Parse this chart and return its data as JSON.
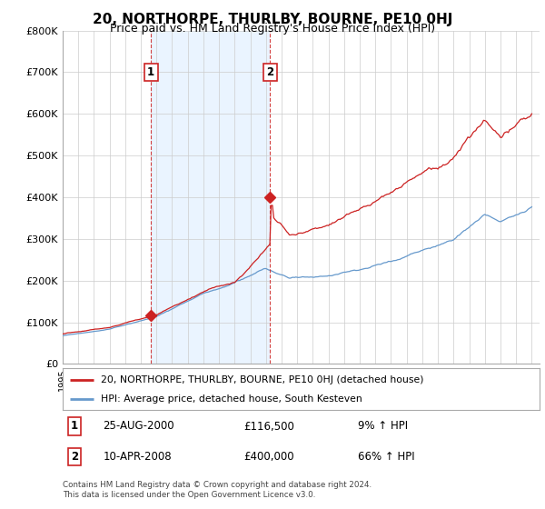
{
  "title": "20, NORTHORPE, THURLBY, BOURNE, PE10 0HJ",
  "subtitle": "Price paid vs. HM Land Registry's House Price Index (HPI)",
  "ylabel_ticks": [
    "£0",
    "£100K",
    "£200K",
    "£300K",
    "£400K",
    "£500K",
    "£600K",
    "£700K",
    "£800K"
  ],
  "ylim": [
    0,
    800000
  ],
  "xlim_start": 1995.0,
  "xlim_end": 2025.5,
  "red_line_color": "#cc2222",
  "blue_line_color": "#6699cc",
  "shade_color": "#ddeeff",
  "sale1_x": 2000.646,
  "sale1_y": 116500,
  "sale2_x": 2008.274,
  "sale2_y": 400000,
  "vline1_x": 2000.646,
  "vline2_x": 2008.274,
  "legend_red_label": "20, NORTHORPE, THURLBY, BOURNE, PE10 0HJ (detached house)",
  "legend_blue_label": "HPI: Average price, detached house, South Kesteven",
  "sale1_label": "1",
  "sale1_date": "25-AUG-2000",
  "sale1_price": "£116,500",
  "sale1_hpi": "9% ↑ HPI",
  "sale2_label": "2",
  "sale2_date": "10-APR-2008",
  "sale2_price": "£400,000",
  "sale2_hpi": "66% ↑ HPI",
  "footnote": "Contains HM Land Registry data © Crown copyright and database right 2024.\nThis data is licensed under the Open Government Licence v3.0.",
  "background_color": "#ffffff",
  "grid_color": "#cccccc"
}
